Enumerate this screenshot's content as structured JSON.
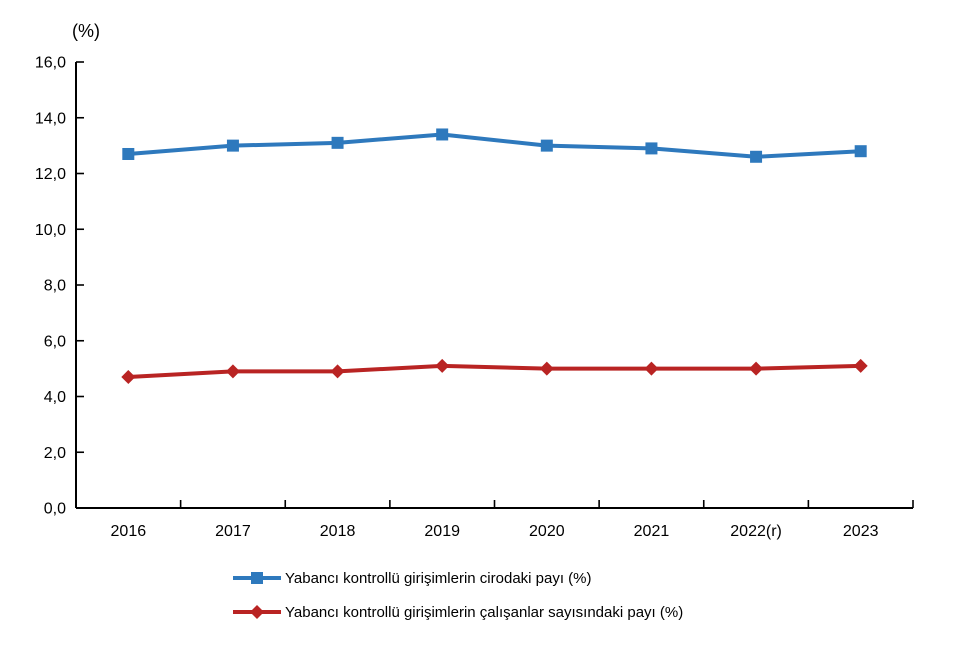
{
  "chart_data": {
    "type": "line",
    "title": "",
    "unit_label": "(%)",
    "categories": [
      "2016",
      "2017",
      "2018",
      "2019",
      "2020",
      "2021",
      "2022(r)",
      "2023"
    ],
    "series": [
      {
        "name": "Yabancı kontrollü girişimlerin cirodaki payı (%)",
        "values": [
          12.7,
          13.0,
          13.1,
          13.4,
          13.0,
          12.9,
          12.6,
          12.8
        ],
        "color": "#2E79BD",
        "marker": "square"
      },
      {
        "name": "Yabancı kontrollü girişimlerin çalışanlar sayısındaki payı (%)",
        "values": [
          4.7,
          4.9,
          4.9,
          5.1,
          5.0,
          5.0,
          5.0,
          5.1
        ],
        "color": "#B92423",
        "marker": "diamond"
      }
    ],
    "xlabel": "",
    "ylabel": "(%)",
    "ylim": [
      0,
      16
    ],
    "ytick_step": 2,
    "ytick_labels": [
      "0,0",
      "2,0",
      "4,0",
      "6,0",
      "8,0",
      "10,0",
      "12,0",
      "14,0",
      "16,0"
    ],
    "grid": false,
    "legend_position": "bottom",
    "axis_color": "#000000"
  }
}
